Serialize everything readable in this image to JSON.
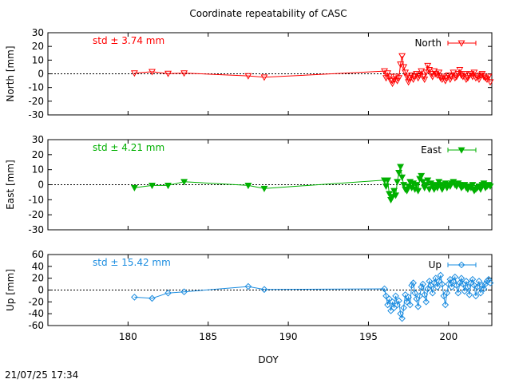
{
  "title": "Coordinate repeatability of CASC",
  "xlabel": "DOY",
  "timestamp": "21/07/25 17:34",
  "chart_data": [
    {
      "type": "line",
      "series_name": "North",
      "ylabel": "North [mm]",
      "std_label": "std ± 3.74 mm",
      "color": "#ff0000",
      "marker": "triangle-down-open",
      "ylim": [
        -30,
        30
      ],
      "yticks": [
        -30,
        -20,
        -10,
        0,
        10,
        20,
        30
      ],
      "xlim": [
        175.0,
        202.7
      ],
      "xticks": [
        180,
        185,
        190,
        195,
        200
      ],
      "x": [
        180.4,
        181.5,
        182.5,
        183.5,
        187.5,
        188.5,
        196.0,
        196.1,
        196.2,
        196.3,
        196.4,
        196.5,
        196.6,
        196.7,
        196.8,
        196.9,
        197.0,
        197.1,
        197.2,
        197.3,
        197.4,
        197.5,
        197.6,
        197.7,
        197.8,
        197.9,
        198.0,
        198.1,
        198.2,
        198.3,
        198.4,
        198.5,
        198.6,
        198.7,
        198.8,
        198.9,
        199.0,
        199.1,
        199.2,
        199.3,
        199.4,
        199.5,
        199.6,
        199.7,
        199.8,
        199.9,
        200.0,
        200.1,
        200.2,
        200.3,
        200.4,
        200.5,
        200.6,
        200.7,
        200.8,
        200.9,
        201.0,
        201.1,
        201.2,
        201.3,
        201.4,
        201.5,
        201.6,
        201.7,
        201.8,
        201.9,
        202.0,
        202.1,
        202.2,
        202.3,
        202.4,
        202.5,
        202.6
      ],
      "y": [
        0.5,
        1.5,
        0.2,
        0.5,
        -1.5,
        -2.5,
        2.0,
        -3.0,
        0.5,
        -2.0,
        -5.0,
        -7.0,
        -4.0,
        -2.0,
        -5.0,
        -3.0,
        7.0,
        13.0,
        5.0,
        1.0,
        -2.0,
        -6.0,
        -3.0,
        -1.0,
        -4.0,
        -2.0,
        0.0,
        -3.0,
        -1.0,
        2.0,
        -2.0,
        -4.0,
        1.0,
        6.0,
        3.0,
        0.0,
        -2.0,
        2.0,
        0.0,
        -1.0,
        1.0,
        -3.0,
        -4.0,
        -2.0,
        -5.0,
        -3.0,
        -1.0,
        -4.0,
        -2.0,
        1.0,
        -3.0,
        -2.0,
        0.0,
        3.0,
        -1.0,
        -2.0,
        0.0,
        -4.0,
        -3.0,
        -1.0,
        0.0,
        -2.0,
        1.0,
        -3.0,
        -2.0,
        -4.0,
        -1.0,
        0.0,
        -2.0,
        -3.0,
        -4.0,
        -2.0,
        -6.0
      ]
    },
    {
      "type": "line",
      "series_name": "East",
      "ylabel": "East [mm]",
      "std_label": "std ± 4.21 mm",
      "color": "#00b000",
      "marker": "triangle-down-filled",
      "ylim": [
        -30,
        30
      ],
      "yticks": [
        -30,
        -20,
        -10,
        0,
        10,
        20,
        30
      ],
      "xlim": [
        175.0,
        202.7
      ],
      "xticks": [
        180,
        185,
        190,
        195,
        200
      ],
      "x": [
        180.4,
        181.5,
        182.5,
        183.5,
        187.5,
        188.5,
        196.0,
        196.1,
        196.2,
        196.3,
        196.4,
        196.5,
        196.6,
        196.7,
        196.8,
        196.9,
        197.0,
        197.1,
        197.2,
        197.3,
        197.4,
        197.5,
        197.6,
        197.7,
        197.8,
        197.9,
        198.0,
        198.1,
        198.2,
        198.3,
        198.4,
        198.5,
        198.6,
        198.7,
        198.8,
        198.9,
        199.0,
        199.1,
        199.2,
        199.3,
        199.4,
        199.5,
        199.6,
        199.7,
        199.8,
        199.9,
        200.0,
        200.1,
        200.2,
        200.3,
        200.4,
        200.5,
        200.6,
        200.7,
        200.8,
        200.9,
        201.0,
        201.1,
        201.2,
        201.3,
        201.4,
        201.5,
        201.6,
        201.7,
        201.8,
        201.9,
        202.0,
        202.1,
        202.2,
        202.3,
        202.4,
        202.5,
        202.6
      ],
      "y": [
        -2.0,
        -0.5,
        -0.5,
        2.0,
        -0.5,
        -2.5,
        3.0,
        -1.0,
        3.0,
        -6.0,
        -10.0,
        -8.0,
        -4.0,
        -7.0,
        2.0,
        8.0,
        12.0,
        5.0,
        0.0,
        -3.0,
        -4.0,
        -1.0,
        2.0,
        -2.0,
        1.0,
        -3.0,
        0.0,
        -4.0,
        4.0,
        6.0,
        2.0,
        -2.0,
        0.0,
        3.0,
        -3.0,
        1.0,
        -1.0,
        -3.0,
        0.0,
        -2.0,
        2.0,
        0.0,
        -3.0,
        -1.0,
        1.0,
        -2.0,
        0.0,
        -1.0,
        1.0,
        2.0,
        0.0,
        -1.0,
        1.0,
        0.0,
        -2.0,
        -1.0,
        0.0,
        -2.0,
        -3.0,
        -1.0,
        -2.0,
        0.0,
        -4.0,
        -3.0,
        -2.0,
        -1.0,
        -3.0,
        0.0,
        1.0,
        -2.0,
        -1.0,
        0.0,
        -1.0
      ]
    },
    {
      "type": "line",
      "series_name": "Up",
      "ylabel": "Up [mm]",
      "std_label": "std ± 15.42 mm",
      "color": "#1a8ce0",
      "marker": "diamond-open",
      "ylim": [
        -60,
        60
      ],
      "yticks": [
        -60,
        -40,
        -20,
        0,
        20,
        40,
        60
      ],
      "xlim": [
        175.0,
        202.7
      ],
      "xticks": [
        180,
        185,
        190,
        195,
        200
      ],
      "x": [
        180.4,
        181.5,
        182.5,
        183.5,
        187.5,
        188.5,
        196.0,
        196.1,
        196.2,
        196.3,
        196.4,
        196.5,
        196.6,
        196.7,
        196.8,
        196.9,
        197.0,
        197.1,
        197.2,
        197.3,
        197.4,
        197.5,
        197.6,
        197.7,
        197.8,
        197.9,
        198.0,
        198.1,
        198.2,
        198.3,
        198.4,
        198.5,
        198.6,
        198.7,
        198.8,
        198.9,
        199.0,
        199.1,
        199.2,
        199.3,
        199.4,
        199.5,
        199.6,
        199.7,
        199.8,
        199.9,
        200.0,
        200.1,
        200.2,
        200.3,
        200.4,
        200.5,
        200.6,
        200.7,
        200.8,
        200.9,
        201.0,
        201.1,
        201.2,
        201.3,
        201.4,
        201.5,
        201.6,
        201.7,
        201.8,
        201.9,
        202.0,
        202.1,
        202.2,
        202.3,
        202.4,
        202.5,
        202.6
      ],
      "y": [
        -12.0,
        -14.0,
        -5.0,
        -3.0,
        6.0,
        1.0,
        2.0,
        -10.0,
        -25.0,
        -15.0,
        -35.0,
        -20.0,
        -30.0,
        -10.0,
        -25.0,
        -18.0,
        -40.0,
        -48.0,
        -30.0,
        -8.0,
        -20.0,
        -12.0,
        -25.0,
        8.0,
        12.0,
        -5.0,
        -15.0,
        -28.0,
        -10.0,
        5.0,
        10.0,
        -8.0,
        -20.0,
        2.0,
        15.0,
        8.0,
        -5.0,
        12.0,
        20.0,
        5.0,
        15.0,
        25.0,
        10.0,
        -10.0,
        -25.0,
        -5.0,
        10.0,
        18.0,
        5.0,
        15.0,
        22.0,
        8.0,
        -5.0,
        12.0,
        20.0,
        10.0,
        -2.0,
        15.0,
        5.0,
        -8.0,
        12.0,
        18.0,
        8.0,
        -10.0,
        5.0,
        15.0,
        -5.0,
        8.0,
        2.0,
        10.0,
        15.0,
        18.0,
        12.0
      ]
    }
  ]
}
